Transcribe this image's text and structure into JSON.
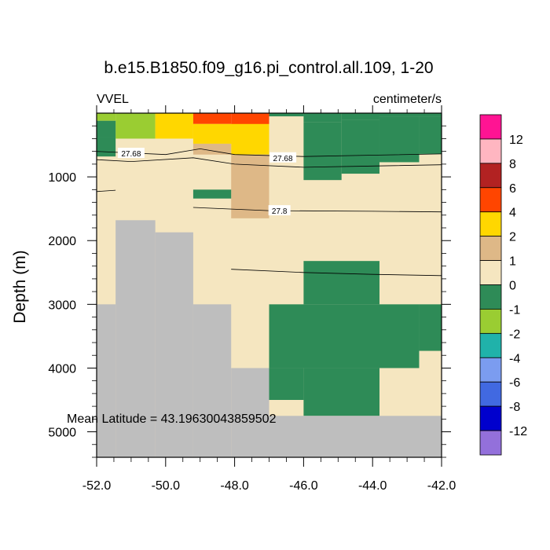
{
  "chart_data": {
    "type": "heatmap",
    "title": "b.e15.B1850.f09_g16.pi_control.all.109, 1-20",
    "left_label": "VVEL",
    "right_label": "centimeter/s",
    "ylabel": "Depth (m)",
    "xlabel": "",
    "xlim": [
      -52.0,
      -42.0
    ],
    "ylim": [
      5400,
      0
    ],
    "y_inverted": true,
    "x_ticks": [
      -52.0,
      -50.0,
      -48.0,
      -46.0,
      -44.0,
      -42.0
    ],
    "x_tick_labels": [
      "-52.0",
      "-50.0",
      "-48.0",
      "-46.0",
      "-44.0",
      "-42.0"
    ],
    "y_ticks": [
      1000,
      2000,
      3000,
      4000,
      5000
    ],
    "y_tick_labels": [
      "1000",
      "2000",
      "3000",
      "4000",
      "5000"
    ],
    "annotation": "Mean Latitude = 43.19630043859502",
    "grid": false,
    "colorbar": {
      "placement": "right",
      "labels": [
        "12",
        "8",
        "6",
        "4",
        "2",
        "1",
        "0",
        "-1",
        "-2",
        "-4",
        "-6",
        "-8",
        "-12"
      ],
      "colors": [
        "#ff1493",
        "#ffb6c1",
        "#b22222",
        "#ff4500",
        "#ffd700",
        "#deb887",
        "#f5e6c0",
        "#2e8b57",
        "#9acd32",
        "#20b2aa",
        "#7b9cf0",
        "#4169e1",
        "#0000cd",
        "#9370db"
      ]
    },
    "land_color": "#bebebe",
    "cells": [
      {
        "x": [
          -52.0,
          -51.45
        ],
        "y": [
          0,
          120
        ],
        "value": -2
      },
      {
        "x": [
          -51.45,
          -50.3
        ],
        "y": [
          0,
          400
        ],
        "value": -2
      },
      {
        "x": [
          -52.0,
          -51.45
        ],
        "y": [
          120,
          370
        ],
        "value": -1
      },
      {
        "x": [
          -52.0,
          -51.45
        ],
        "y": [
          370,
          680
        ],
        "value": -1
      },
      {
        "x": [
          -50.3,
          -49.2
        ],
        "y": [
          0,
          400
        ],
        "value": 2
      },
      {
        "x": [
          -49.2,
          -48.1
        ],
        "y": [
          0,
          170
        ],
        "value": 4
      },
      {
        "x": [
          -48.1,
          -47.0
        ],
        "y": [
          0,
          200
        ],
        "value": 4
      },
      {
        "x": [
          -49.2,
          -47.0
        ],
        "y": [
          170,
          480
        ],
        "value": 2
      },
      {
        "x": [
          -48.1,
          -47.0
        ],
        "y": [
          200,
          650
        ],
        "value": 2
      },
      {
        "x": [
          -49.2,
          -48.1
        ],
        "y": [
          480,
          650
        ],
        "value": 1
      },
      {
        "x": [
          -48.1,
          -47.0
        ],
        "y": [
          650,
          1650
        ],
        "value": 1
      },
      {
        "x": [
          -47.0,
          -46.0
        ],
        "y": [
          0,
          50
        ],
        "value": -1
      },
      {
        "x": [
          -46.0,
          -44.9
        ],
        "y": [
          0,
          140
        ],
        "value": -1
      },
      {
        "x": [
          -44.9,
          -43.8
        ],
        "y": [
          0,
          100
        ],
        "value": -1
      },
      {
        "x": [
          -43.8,
          -42.0
        ],
        "y": [
          0,
          50
        ],
        "value": -1
      },
      {
        "x": [
          -46.0,
          -44.9
        ],
        "y": [
          140,
          1050
        ],
        "value": -1
      },
      {
        "x": [
          -44.9,
          -43.8
        ],
        "y": [
          100,
          950
        ],
        "value": -1
      },
      {
        "x": [
          -43.8,
          -42.65
        ],
        "y": [
          50,
          770
        ],
        "value": -1
      },
      {
        "x": [
          -42.65,
          -42.0
        ],
        "y": [
          50,
          640
        ],
        "value": -1
      },
      {
        "x": [
          -49.2,
          -48.1
        ],
        "y": [
          1200,
          1340
        ],
        "value": -1
      },
      {
        "x": [
          -46.0,
          -43.8
        ],
        "y": [
          2320,
          3000
        ],
        "value": -1
      },
      {
        "x": [
          -47.0,
          -42.65
        ],
        "y": [
          3000,
          4000
        ],
        "value": -1
      },
      {
        "x": [
          -42.65,
          -42.0
        ],
        "y": [
          3000,
          3730
        ],
        "value": -1
      },
      {
        "x": [
          -46.0,
          -43.8
        ],
        "y": [
          4000,
          4750
        ],
        "value": -1
      },
      {
        "x": [
          -47.0,
          -46.0
        ],
        "y": [
          4000,
          4500
        ],
        "value": -1
      }
    ],
    "land": [
      {
        "x": [
          -51.45,
          -50.3
        ],
        "y": [
          1680,
          5400
        ]
      },
      {
        "x": [
          -50.3,
          -49.2
        ],
        "y": [
          1870,
          5400
        ]
      },
      {
        "x": [
          -52.0,
          -51.45
        ],
        "y": [
          3000,
          5400
        ]
      },
      {
        "x": [
          -49.2,
          -48.1
        ],
        "y": [
          3000,
          5400
        ]
      },
      {
        "x": [
          -48.1,
          -47.0
        ],
        "y": [
          4000,
          5400
        ]
      },
      {
        "x": [
          -47.0,
          -42.0
        ],
        "y": [
          4750,
          5400
        ]
      }
    ],
    "contours": [
      {
        "points": [
          [
            -52.0,
            600
          ],
          [
            -50.0,
            650
          ],
          [
            -49.0,
            560
          ],
          [
            -48.0,
            650
          ],
          [
            -46.0,
            680
          ],
          [
            -44.0,
            660
          ],
          [
            -42.0,
            640
          ]
        ]
      },
      {
        "points": [
          [
            -52.0,
            730
          ],
          [
            -51.0,
            760
          ],
          [
            -49.2,
            700
          ],
          [
            -48.0,
            800
          ],
          [
            -46.0,
            850
          ],
          [
            -44.0,
            830
          ],
          [
            -42.0,
            810
          ]
        ]
      },
      {
        "points": [
          [
            -52.0,
            1230
          ],
          [
            -51.45,
            1210
          ]
        ]
      },
      {
        "points": [
          [
            -49.2,
            1480
          ],
          [
            -47.0,
            1530
          ],
          [
            -44.0,
            1540
          ],
          [
            -42.0,
            1550
          ]
        ]
      },
      {
        "points": [
          [
            -48.1,
            2450
          ],
          [
            -46.0,
            2500
          ],
          [
            -44.0,
            2530
          ],
          [
            -42.0,
            2550
          ]
        ]
      }
    ],
    "contour_labels": [
      {
        "text": "27.68",
        "x": -51.0,
        "y": 630
      },
      {
        "text": "27.68",
        "x": -46.6,
        "y": 700
      },
      {
        "text": "27.8",
        "x": -46.7,
        "y": 1530
      }
    ]
  }
}
